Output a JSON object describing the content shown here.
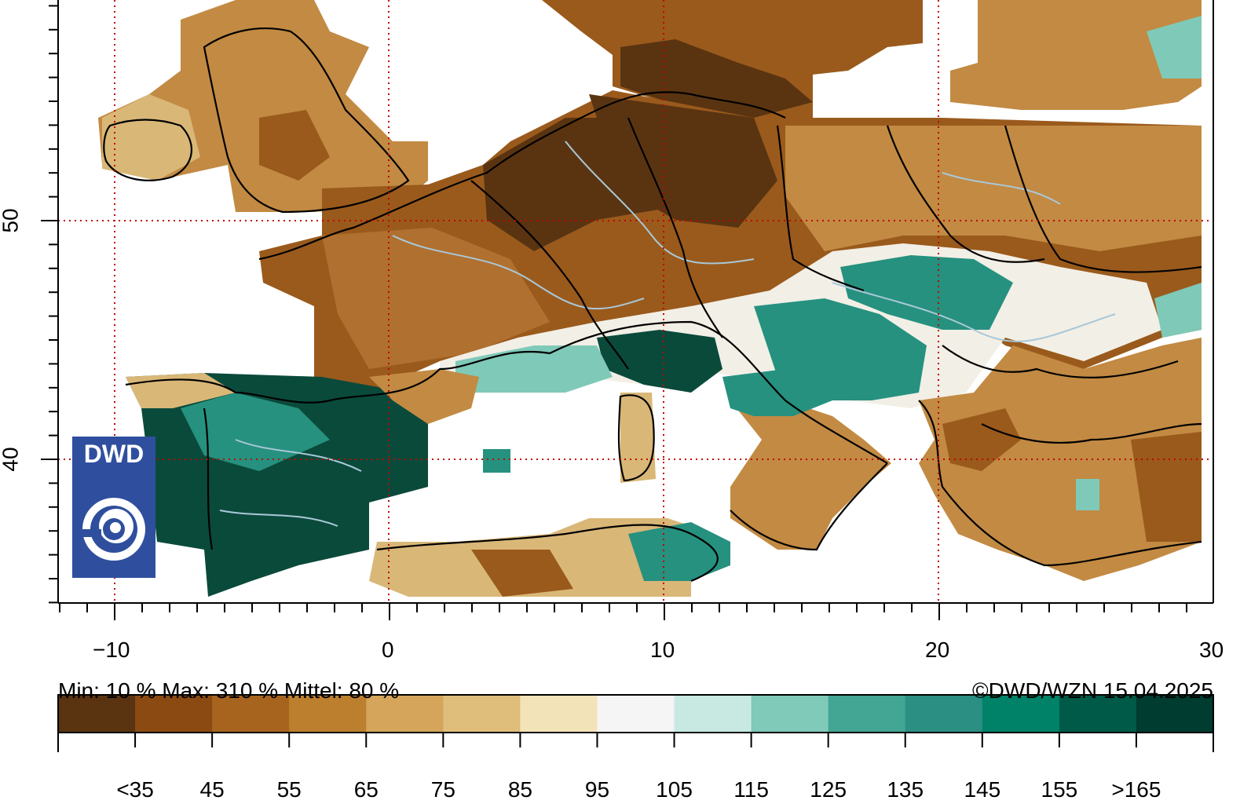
{
  "map": {
    "x_ticks": [
      "−10",
      "0",
      "10",
      "20",
      "30"
    ],
    "y_ticks": [
      "50",
      "40"
    ],
    "colors": {
      "land_dry_dark": "#5a3411",
      "land_dry": "#9a5a1c",
      "land_mid": "#c28a43",
      "land_light": "#d9b777",
      "neutral": "#f2efe6",
      "wet_light": "#7fc9b8",
      "wet": "#26917f",
      "wet_dark": "#0a4a3b",
      "grid": "#c00000",
      "rivers": "#a9c8d8"
    }
  },
  "stats": {
    "summary": "Min: 10 %  Max: 310 %  Mittel: 80 %",
    "copyright": "©DWD/WZN 15.04.2025"
  },
  "legend": {
    "colors": [
      "#5a3411",
      "#8b4a12",
      "#a7641f",
      "#bc7f2e",
      "#d4a55a",
      "#dfbd7a",
      "#f3e3b8",
      "#f5f5f5",
      "#c8e9e2",
      "#7fcab8",
      "#43a593",
      "#2b8f83",
      "#008268",
      "#005a48",
      "#003c30"
    ],
    "labels": [
      "<35",
      "45",
      "55",
      "65",
      "75",
      "85",
      "95",
      "105",
      "115",
      "125",
      "135",
      "145",
      "155",
      ">165"
    ]
  },
  "logo": {
    "text": "DWD"
  }
}
